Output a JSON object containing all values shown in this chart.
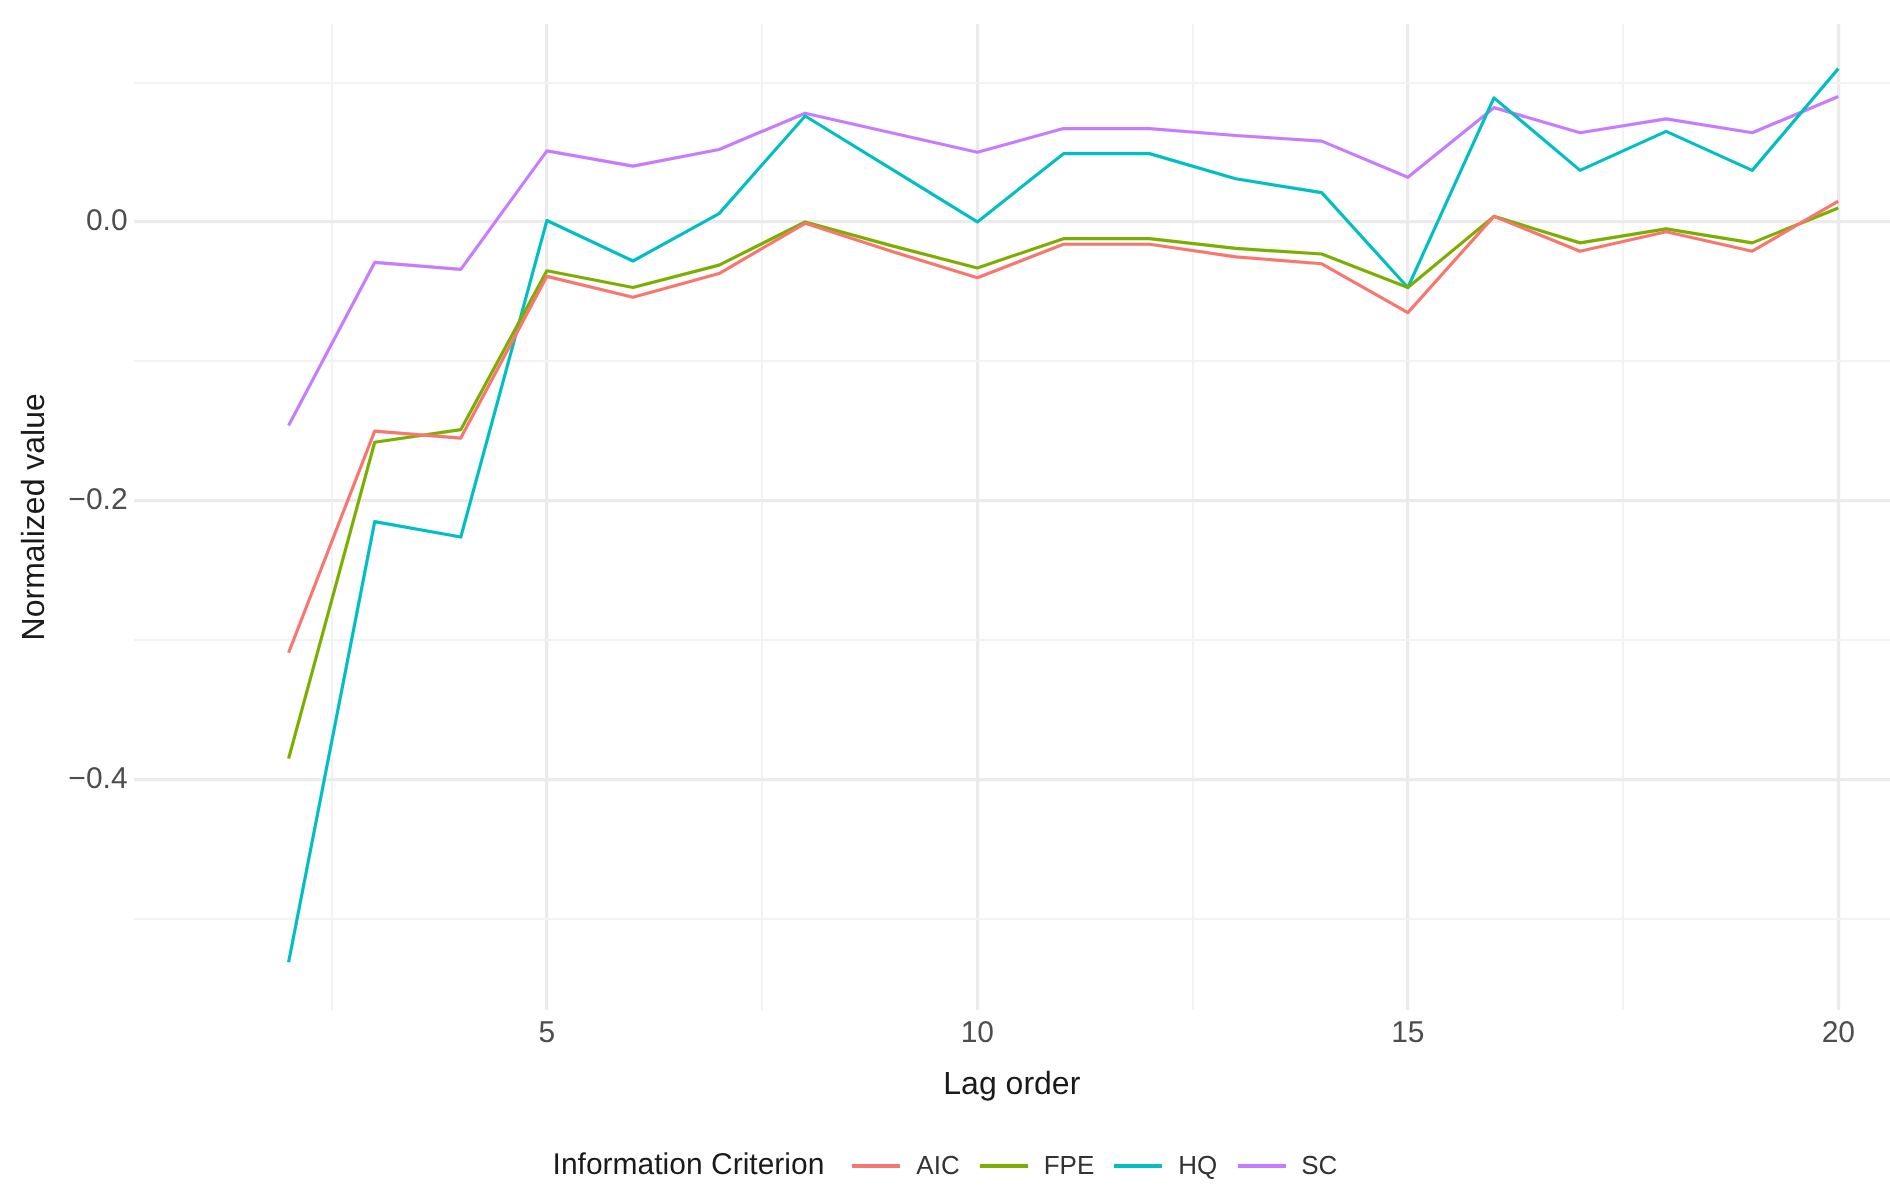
{
  "chart_data": {
    "type": "line",
    "xlabel": "Lag order",
    "ylabel": "Normalized value",
    "legend_title": "Information Criterion",
    "x": [
      2,
      3,
      4,
      5,
      6,
      7,
      8,
      9,
      10,
      11,
      12,
      13,
      14,
      15,
      16,
      17,
      18,
      19,
      20
    ],
    "series": [
      {
        "name": "AIC",
        "color": "#f8766d",
        "values": [
          -0.309,
          -0.15,
          -0.155,
          -0.039,
          -0.054,
          -0.037,
          -0.001,
          -0.021,
          -0.04,
          -0.016,
          -0.016,
          -0.025,
          -0.03,
          -0.065,
          0.004,
          -0.021,
          -0.007,
          -0.021,
          0.015
        ]
      },
      {
        "name": "FPE",
        "color": "#7cae00",
        "values": [
          -0.385,
          -0.158,
          -0.149,
          -0.035,
          -0.047,
          -0.031,
          0,
          -0.017,
          -0.033,
          -0.012,
          -0.012,
          -0.019,
          -0.023,
          -0.047,
          0.004,
          -0.015,
          -0.005,
          -0.015,
          0.01
        ]
      },
      {
        "name": "HQ",
        "color": "#00bfc4",
        "values": [
          -0.531,
          -0.215,
          -0.226,
          0.001,
          -0.028,
          0.006,
          0.076,
          0.038,
          0,
          0.049,
          0.049,
          0.031,
          0.021,
          -0.047,
          0.089,
          0.037,
          0.065,
          0.037,
          0.11
        ]
      },
      {
        "name": "SC",
        "color": "#c77cff",
        "values": [
          -0.146,
          -0.029,
          -0.034,
          0.051,
          0.04,
          0.052,
          0.078,
          0.064,
          0.05,
          0.067,
          0.067,
          0.062,
          0.058,
          0.032,
          0.082,
          0.064,
          0.074,
          0.064,
          0.09
        ]
      }
    ],
    "xlim": [
      0.2,
      20.6
    ],
    "ylim": [
      -0.565,
      0.142
    ],
    "xticks": [
      {
        "value": 2.5,
        "label": null
      },
      5,
      {
        "value": 7.5,
        "label": null
      },
      10,
      {
        "value": 12.5,
        "label": null
      },
      15,
      {
        "value": 17.5,
        "label": null
      },
      20
    ],
    "yticks": [
      {
        "value": -0.5,
        "label": null
      },
      {
        "value": -0.4,
        "label": "−0.4"
      },
      {
        "value": -0.3,
        "label": null
      },
      {
        "value": -0.2,
        "label": "−0.2"
      },
      {
        "value": -0.1,
        "label": null
      },
      {
        "value": 0,
        "label": "0.0"
      },
      {
        "value": 0.1,
        "label": null
      }
    ],
    "grid": true,
    "legend": "bottom",
    "marker": "none",
    "line_style": "solid"
  }
}
